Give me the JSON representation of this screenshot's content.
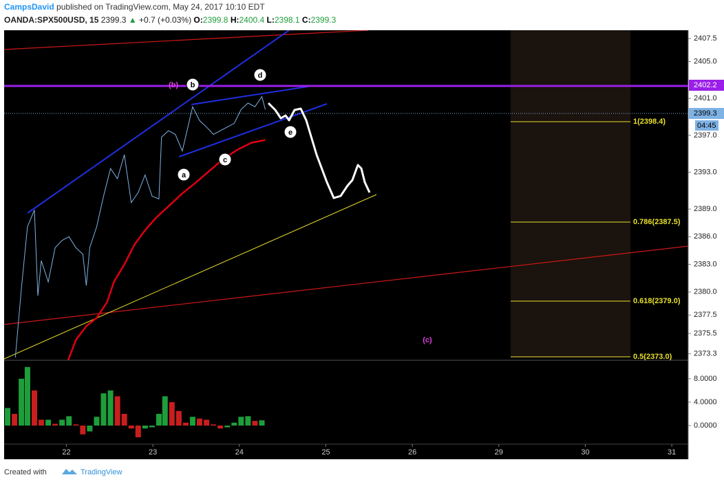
{
  "header": {
    "author": "CampsDavid",
    "published": "published on TradingView.com, May 24, 2017 10:10 EDT",
    "symbol": "OANDA:SPX500USD, 15",
    "last": "2399.3",
    "arrow": "▲",
    "change": "+0.7 (+0.03%)",
    "ohlc": [
      {
        "label": "O:",
        "value": "2399.8"
      },
      {
        "label": "H:",
        "value": "2400.4"
      },
      {
        "label": "L:",
        "value": "2398.1"
      },
      {
        "label": "C:",
        "value": "2399.3"
      }
    ]
  },
  "footer": {
    "created": "Created with",
    "brand": "TradingView"
  },
  "chart_data": [
    {
      "type": "line",
      "xlim": [
        -0.72,
        7.19
      ],
      "xticks": [
        {
          "value": 0,
          "label": "22"
        },
        {
          "value": 1,
          "label": "23"
        },
        {
          "value": 2,
          "label": "24"
        },
        {
          "value": 3,
          "label": "25"
        },
        {
          "value": 4,
          "label": "26"
        },
        {
          "value": 5,
          "label": "29"
        },
        {
          "value": 6,
          "label": "30"
        },
        {
          "value": 7,
          "label": "31"
        }
      ],
      "ylim": [
        2372.6,
        2408.4
      ],
      "yticks": [
        2407.5,
        {
          "value": 2405,
          "label": "2405.0"
        },
        {
          "value": 2401,
          "label": "2401.0"
        },
        {
          "value": 2397,
          "label": "2397.0"
        },
        {
          "value": 2393,
          "label": "2393.0"
        },
        {
          "value": 2389,
          "label": "2389.0"
        },
        {
          "value": 2386,
          "label": "2386.0"
        },
        {
          "value": 2383,
          "label": "2383.0"
        },
        {
          "value": 2380,
          "label": "2380.0"
        },
        2377.5,
        2375.5,
        2373.3
      ],
      "series": [
        {
          "color": "#7fb2e5",
          "x": [
            -0.59,
            -0.52,
            -0.45,
            -0.37,
            -0.33,
            -0.29,
            -0.21,
            -0.13,
            -0.05,
            0.03,
            0.11,
            0.19,
            0.23,
            0.27,
            0.35,
            0.43,
            0.51,
            0.59,
            0.67,
            0.75,
            0.83,
            0.91,
            0.99,
            1.07,
            1.1,
            1.18,
            1.26,
            1.34,
            1.46,
            1.54,
            1.62,
            1.7,
            1.78,
            1.86,
            1.94,
            2.02,
            2.1,
            2.18,
            2.26,
            2.3
          ],
          "values": [
            2372.9,
            2380.4,
            2387.1,
            2388.9,
            2379.6,
            2383.4,
            2381.1,
            2384.8,
            2385.6,
            2386.0,
            2384.8,
            2384.1,
            2380.7,
            2384.8,
            2387.1,
            2390.4,
            2393.4,
            2392.3,
            2394.9,
            2389.7,
            2390.8,
            2392.7,
            2390.4,
            2390.1,
            2396.8,
            2397.5,
            2397.1,
            2395.3,
            2400.1,
            2398.6,
            2397.9,
            2397.1,
            2397.5,
            2397.9,
            2398.3,
            2399.8,
            2400.5,
            2400.1,
            2401.2,
            2399.8
          ]
        },
        {
          "color": "#e0000f",
          "x": [
            0.02,
            0.11,
            0.23,
            0.35,
            0.47,
            0.55,
            0.67,
            0.79,
            0.91,
            1.03,
            1.18,
            1.34,
            1.5,
            1.66,
            1.81,
            1.97,
            2.14,
            2.3
          ],
          "values": [
            2372.6,
            2374.8,
            2376.3,
            2377.2,
            2378.9,
            2381.1,
            2383.0,
            2385.2,
            2386.7,
            2388.0,
            2389.3,
            2390.7,
            2391.9,
            2393.2,
            2394.4,
            2395.4,
            2396.2,
            2396.5
          ]
        }
      ],
      "annotations": [
        "(b)",
        "b",
        "d",
        "e",
        "c",
        "a",
        "(c)"
      ],
      "fib_labels": [
        "1(2398.4)",
        "0.786(2387.5)",
        "0.618(2379.0)",
        "0.5(2373.0)"
      ],
      "price_tags": [
        "2402.2",
        "2399.3",
        "04:45"
      ]
    },
    {
      "type": "bar",
      "up_color": "#1e9e3a",
      "down_color": "#c81e1e",
      "ylim": [
        -3.05,
        10.8
      ],
      "yticks": [
        {
          "value": 8,
          "label": "8.0000"
        },
        {
          "value": 4,
          "label": "4.0000"
        },
        {
          "value": 0,
          "label": "0.0000"
        }
      ],
      "x": [
        -0.68,
        -0.6,
        -0.52,
        -0.45,
        -0.37,
        -0.29,
        -0.21,
        -0.13,
        -0.05,
        0.03,
        0.11,
        0.19,
        0.27,
        0.35,
        0.43,
        0.51,
        0.59,
        0.67,
        0.75,
        0.83,
        0.91,
        0.99,
        1.07,
        1.14,
        1.22,
        1.3,
        1.38,
        1.46,
        1.54,
        1.62,
        1.7,
        1.78,
        1.86,
        1.94,
        2.02,
        2.1,
        2.18,
        2.26
      ],
      "values": [
        3,
        2,
        8,
        10,
        6,
        1,
        1,
        0.3,
        1,
        1.6,
        0.2,
        -1.5,
        -1,
        1.5,
        5.5,
        6,
        5,
        2,
        -0.5,
        -2,
        -0.5,
        -0.3,
        2,
        5,
        4,
        2.5,
        0.5,
        1.5,
        1.2,
        1,
        0.2,
        -0.5,
        -0.3,
        0.5,
        1.5,
        1.6,
        0.8,
        0.9
      ]
    }
  ]
}
